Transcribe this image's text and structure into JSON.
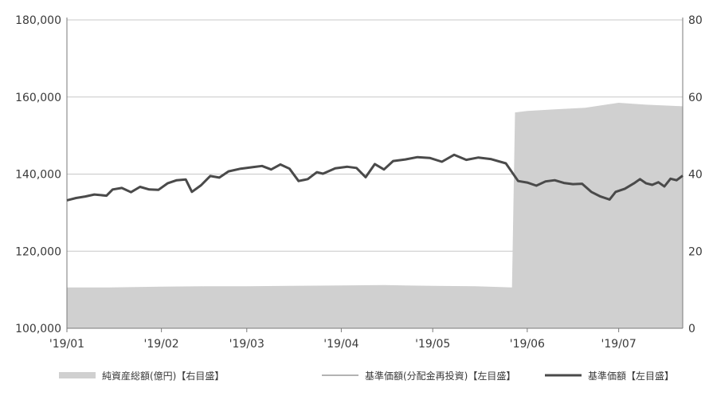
{
  "chart_data": {
    "type": "area+line",
    "x_ticks": [
      "'19/01",
      "'19/02",
      "'19/03",
      "'19/04",
      "'19/05",
      "'19/06",
      "'19/07"
    ],
    "left_axis": {
      "ticks": [
        "100,000",
        "120,000",
        "140,000",
        "160,000",
        "180,000"
      ],
      "ylim": [
        100000,
        180000
      ]
    },
    "right_axis": {
      "ticks": [
        "0",
        "20",
        "40",
        "60",
        "80"
      ],
      "ylim": [
        0,
        80
      ]
    },
    "x_range": [
      "2019-01-01",
      "2019-07-22"
    ],
    "legend_placement": "bottom",
    "grid": true,
    "series": [
      {
        "name": "純資産総額(億円)【右目盛】",
        "axis": "right",
        "kind": "area",
        "color": "#d0d0d0",
        "points": [
          [
            "2019-01-01",
            10.6
          ],
          [
            "2019-01-15",
            10.6
          ],
          [
            "2019-02-01",
            10.8
          ],
          [
            "2019-02-15",
            10.9
          ],
          [
            "2019-03-01",
            10.9
          ],
          [
            "2019-03-15",
            11.0
          ],
          [
            "2019-04-01",
            11.1
          ],
          [
            "2019-04-15",
            11.2
          ],
          [
            "2019-05-01",
            11.0
          ],
          [
            "2019-05-15",
            10.9
          ],
          [
            "2019-05-27",
            10.6
          ],
          [
            "2019-05-28",
            56.0
          ],
          [
            "2019-06-01",
            56.4
          ],
          [
            "2019-06-10",
            56.8
          ],
          [
            "2019-06-20",
            57.2
          ],
          [
            "2019-07-01",
            58.5
          ],
          [
            "2019-07-10",
            58.0
          ],
          [
            "2019-07-22",
            57.6
          ]
        ]
      },
      {
        "name": "基準価額(分配金再投資)【左目盛】",
        "axis": "left",
        "kind": "line",
        "color": "#9a9a9a",
        "points": []
      },
      {
        "name": "基準価額【左目盛】",
        "axis": "left",
        "kind": "line",
        "color": "#4a4a4a",
        "points": [
          [
            "2019-01-01",
            133200
          ],
          [
            "2019-01-04",
            133800
          ],
          [
            "2019-01-07",
            134200
          ],
          [
            "2019-01-10",
            134700
          ],
          [
            "2019-01-14",
            134400
          ],
          [
            "2019-01-16",
            136000
          ],
          [
            "2019-01-19",
            136400
          ],
          [
            "2019-01-22",
            135300
          ],
          [
            "2019-01-25",
            136700
          ],
          [
            "2019-01-28",
            136000
          ],
          [
            "2019-01-31",
            135900
          ],
          [
            "2019-02-03",
            137600
          ],
          [
            "2019-02-06",
            138400
          ],
          [
            "2019-02-09",
            138600
          ],
          [
            "2019-02-11",
            135400
          ],
          [
            "2019-02-14",
            137100
          ],
          [
            "2019-02-17",
            139500
          ],
          [
            "2019-02-20",
            139100
          ],
          [
            "2019-02-23",
            140700
          ],
          [
            "2019-02-27",
            141400
          ],
          [
            "2019-03-03",
            141800
          ],
          [
            "2019-03-06",
            142100
          ],
          [
            "2019-03-09",
            141200
          ],
          [
            "2019-03-12",
            142500
          ],
          [
            "2019-03-15",
            141400
          ],
          [
            "2019-03-18",
            138200
          ],
          [
            "2019-03-21",
            138700
          ],
          [
            "2019-03-24",
            140500
          ],
          [
            "2019-03-26",
            140100
          ],
          [
            "2019-03-30",
            141500
          ],
          [
            "2019-04-03",
            141900
          ],
          [
            "2019-04-06",
            141600
          ],
          [
            "2019-04-09",
            139200
          ],
          [
            "2019-04-12",
            142600
          ],
          [
            "2019-04-15",
            141200
          ],
          [
            "2019-04-18",
            143400
          ],
          [
            "2019-04-22",
            143800
          ],
          [
            "2019-04-26",
            144400
          ],
          [
            "2019-04-30",
            144200
          ],
          [
            "2019-05-04",
            143200
          ],
          [
            "2019-05-08",
            145000
          ],
          [
            "2019-05-12",
            143700
          ],
          [
            "2019-05-16",
            144300
          ],
          [
            "2019-05-20",
            143900
          ],
          [
            "2019-05-25",
            142800
          ],
          [
            "2019-05-29",
            138200
          ],
          [
            "2019-06-01",
            137800
          ],
          [
            "2019-06-04",
            137000
          ],
          [
            "2019-06-07",
            138100
          ],
          [
            "2019-06-10",
            138400
          ],
          [
            "2019-06-13",
            137700
          ],
          [
            "2019-06-16",
            137400
          ],
          [
            "2019-06-19",
            137500
          ],
          [
            "2019-06-22",
            135400
          ],
          [
            "2019-06-25",
            134200
          ],
          [
            "2019-06-28",
            133400
          ],
          [
            "2019-06-30",
            135400
          ],
          [
            "2019-07-03",
            136200
          ],
          [
            "2019-07-06",
            137600
          ],
          [
            "2019-07-08",
            138700
          ],
          [
            "2019-07-10",
            137600
          ],
          [
            "2019-07-12",
            137200
          ],
          [
            "2019-07-14",
            137900
          ],
          [
            "2019-07-16",
            136800
          ],
          [
            "2019-07-18",
            138800
          ],
          [
            "2019-07-20",
            138400
          ],
          [
            "2019-07-22",
            139600
          ]
        ]
      }
    ]
  }
}
